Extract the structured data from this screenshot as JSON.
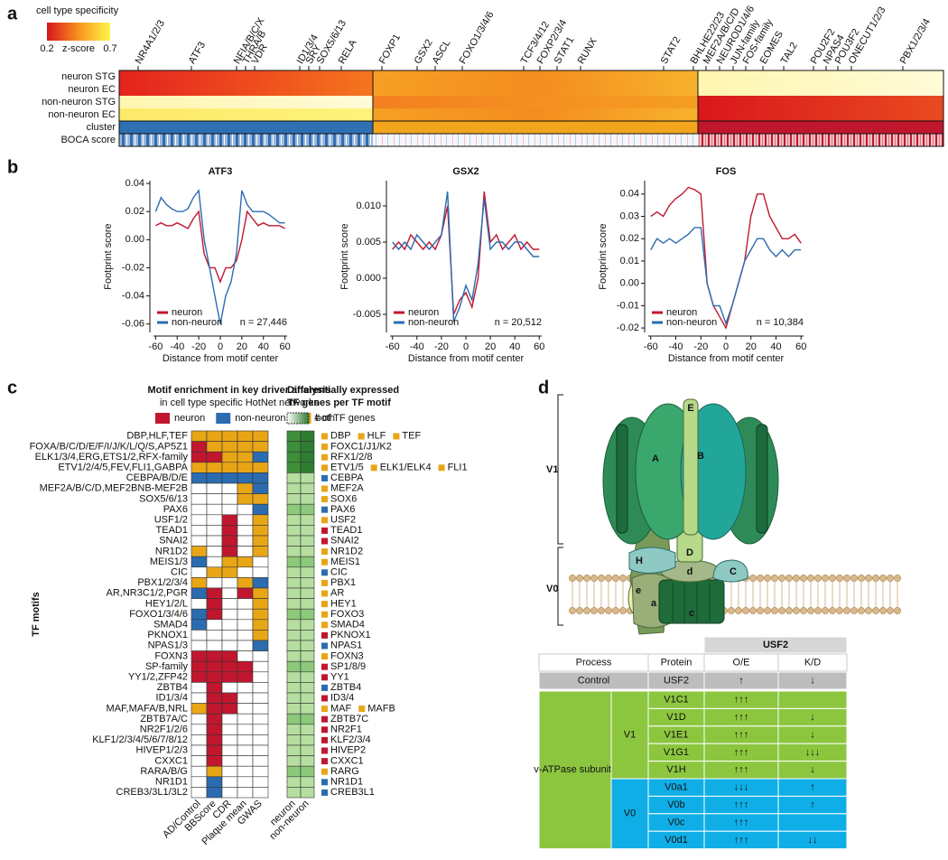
{
  "panel_labels": [
    "a",
    "b",
    "c",
    "d"
  ],
  "panel_a": {
    "legend_title": "cell type specificity",
    "legend_ticks": [
      0.2,
      0.7
    ],
    "legend_label": "z-score",
    "rows": [
      "neuron STG",
      "neuron EC",
      "non-neuron STG",
      "non-neuron EC",
      "cluster",
      "BOCA score"
    ],
    "tfs": [
      "NR4A1/2/3",
      "ATF3",
      "NFIA/B/C/X",
      "THRA/B",
      "VDR",
      "ID1/3/4",
      "SRY",
      "SOX5/6/13",
      "RELA",
      "FOXP1",
      "GSX2",
      "ASCL",
      "FOXO1/3/4/6",
      "TCF3/4/12",
      "FOXP2/3/4",
      "STAT1",
      "RUNX",
      "STAT2",
      "BHLHE22/23",
      "MEF2A/B/C/D",
      "NEUROD1/4/6",
      "JUN-family",
      "FOS-family",
      "EOMES",
      "TAL2",
      "POU2F2",
      "NPAS4",
      "POU3F2",
      "ONECUT1/2/3",
      "PBX1/2/3/4"
    ]
  },
  "chart_data": [
    {
      "type": "line",
      "title": "ATF3",
      "y_label": "Footprint score",
      "x_label": "Distance from motif center",
      "annotation": "n = 27,446",
      "x": [
        -60,
        -55,
        -50,
        -45,
        -40,
        -35,
        -30,
        -25,
        -20,
        -15,
        -10,
        -5,
        0,
        5,
        10,
        15,
        20,
        25,
        30,
        35,
        40,
        45,
        50,
        55,
        60
      ],
      "xlim": [
        -62,
        62
      ],
      "xticks": [
        -60,
        -40,
        -20,
        0,
        20,
        40,
        60
      ],
      "ylim": [
        -0.066,
        0.042
      ],
      "yticks": [
        -0.06,
        -0.04,
        -0.02,
        {
          "value": 0,
          "label": "0.00"
        },
        0.02,
        0.04
      ],
      "series": [
        {
          "name": "neuron",
          "color": "#c0172f",
          "values": [
            0.01,
            0.012,
            0.01,
            0.01,
            0.012,
            0.01,
            0.008,
            0.015,
            0.02,
            -0.01,
            -0.02,
            -0.02,
            -0.03,
            -0.02,
            -0.02,
            -0.015,
            0.0,
            0.02,
            0.015,
            0.01,
            0.012,
            0.01,
            0.01,
            0.01,
            0.008
          ]
        },
        {
          "name": "non-neuron",
          "color": "#2b6cb0",
          "values": [
            0.02,
            0.03,
            0.025,
            0.022,
            0.02,
            0.02,
            0.022,
            0.03,
            0.035,
            0.0,
            -0.02,
            -0.04,
            -0.06,
            -0.04,
            -0.03,
            -0.01,
            0.035,
            0.025,
            0.02,
            0.02,
            0.02,
            0.018,
            0.015,
            0.012,
            0.012
          ]
        }
      ]
    },
    {
      "type": "line",
      "title": "GSX2",
      "y_label": "Footprint score",
      "x_label": "Distance from motif center",
      "annotation": "n = 20,512",
      "x": [
        -60,
        -55,
        -50,
        -45,
        -40,
        -35,
        -30,
        -25,
        -20,
        -15,
        -10,
        -5,
        0,
        5,
        10,
        15,
        20,
        25,
        30,
        35,
        40,
        45,
        50,
        55,
        60
      ],
      "xlim": [
        -62,
        62
      ],
      "xticks": [
        -60,
        -40,
        -20,
        0,
        20,
        40,
        60
      ],
      "ylim": [
        -0.0075,
        0.0135
      ],
      "yticks": [
        -0.005,
        {
          "value": 0,
          "label": "0.000"
        },
        0.005,
        {
          "value": 0.01,
          "label": "0.010"
        }
      ],
      "series": [
        {
          "name": "neuron",
          "color": "#c0172f",
          "values": [
            0.004,
            0.005,
            0.004,
            0.006,
            0.005,
            0.004,
            0.005,
            0.004,
            0.006,
            0.01,
            -0.005,
            -0.003,
            -0.002,
            -0.004,
            0.0,
            0.012,
            0.005,
            0.006,
            0.004,
            0.005,
            0.006,
            0.004,
            0.005,
            0.004,
            0.004
          ]
        },
        {
          "name": "non-neuron",
          "color": "#2b6cb0",
          "values": [
            0.005,
            0.004,
            0.005,
            0.004,
            0.006,
            0.005,
            0.004,
            0.005,
            0.006,
            0.012,
            -0.006,
            -0.004,
            -0.001,
            -0.003,
            0.002,
            0.011,
            0.004,
            0.005,
            0.005,
            0.004,
            0.005,
            0.005,
            0.004,
            0.003,
            0.003
          ]
        }
      ]
    },
    {
      "type": "line",
      "title": "FOS",
      "y_label": "Footprint score",
      "x_label": "Distance from motif center",
      "annotation": "n = 10,384",
      "x": [
        -60,
        -55,
        -50,
        -45,
        -40,
        -35,
        -30,
        -25,
        -20,
        -15,
        -10,
        -5,
        0,
        5,
        10,
        15,
        20,
        25,
        30,
        35,
        40,
        45,
        50,
        55,
        60
      ],
      "xlim": [
        -62,
        62
      ],
      "xticks": [
        -60,
        -40,
        -20,
        0,
        20,
        40,
        60
      ],
      "ylim": [
        -0.022,
        0.046
      ],
      "yticks": [
        -0.02,
        -0.01,
        {
          "value": 0,
          "label": "0.00"
        },
        0.01,
        0.02,
        0.03,
        0.04
      ],
      "series": [
        {
          "name": "neuron",
          "color": "#c0172f",
          "values": [
            0.03,
            0.032,
            0.03,
            0.035,
            0.038,
            0.04,
            0.043,
            0.042,
            0.04,
            0.0,
            -0.01,
            -0.015,
            -0.02,
            -0.01,
            0.0,
            0.01,
            0.03,
            0.04,
            0.04,
            0.03,
            0.025,
            0.02,
            0.02,
            0.022,
            0.018
          ]
        },
        {
          "name": "non-neuron",
          "color": "#2b6cb0",
          "values": [
            0.015,
            0.02,
            0.018,
            0.02,
            0.018,
            0.02,
            0.022,
            0.025,
            0.025,
            0.0,
            -0.01,
            -0.01,
            -0.018,
            -0.01,
            0.0,
            0.01,
            0.015,
            0.02,
            0.02,
            0.015,
            0.012,
            0.015,
            0.012,
            0.015,
            0.015
          ]
        }
      ]
    }
  ],
  "panel_c": {
    "title": "Motif enrichment in key driver analysis",
    "subtitle": "in cell type specific HotNet networks",
    "legend": [
      {
        "label": "neuron",
        "color": "#c0172f"
      },
      {
        "label": "non-neuron",
        "color": "#2b6cb0"
      },
      {
        "label": "both",
        "color": "#e8a617"
      }
    ],
    "de_title": "Differentially expressed",
    "de_subtitle": "TF genes per TF motif",
    "de_legend": "# of TF genes",
    "y_label": "TF motifs",
    "columns": [
      "AD/Control",
      "BBScore",
      "CDR",
      "Plaque mean",
      "GWAS"
    ],
    "de_columns": [
      "neuron",
      "non-neuron"
    ],
    "rows": [
      {
        "motif": "DBP,HLF,TEF",
        "cells": [
          "both",
          "both",
          "both",
          "both",
          "both"
        ],
        "genes": [
          {
            "name": "DBP",
            "group": "both"
          },
          {
            "name": "HLF",
            "group": "both"
          },
          {
            "name": "TEF",
            "group": "both"
          }
        ]
      },
      {
        "motif": "FOXA/B/C/D/E/F/I/J/K/L/Q/S,AP5Z1",
        "cells": [
          "neuron",
          "both",
          "both",
          "both",
          "both"
        ],
        "genes": [
          {
            "name": "FOXC1/J1/K2",
            "group": "both"
          }
        ]
      },
      {
        "motif": "ELK1/3/4,ERG,ETS1/2,RFX-family",
        "cells": [
          "neuron",
          "neuron",
          "both",
          "both",
          "non-neuron"
        ],
        "genes": [
          {
            "name": "RFX1/2/8",
            "group": "both"
          }
        ]
      },
      {
        "motif": "ETV1/2/4/5,FEV,FLI1,GABPA",
        "cells": [
          "both",
          "both",
          "both",
          "both",
          "both"
        ],
        "genes": [
          {
            "name": "ETV1/5",
            "group": "both"
          },
          {
            "name": "ELK1/ELK4",
            "group": "both"
          },
          {
            "name": "FLI1",
            "group": "both"
          }
        ]
      },
      {
        "motif": "CEBPA/B/D/E",
        "cells": [
          "non-neuron",
          "non-neuron",
          "non-neuron",
          "non-neuron",
          "non-neuron"
        ],
        "genes": [
          {
            "name": "CEBPA",
            "group": "non-neuron"
          }
        ]
      },
      {
        "motif": "MEF2A/B/C/D,MEF2BNB-MEF2B",
        "cells": [
          null,
          null,
          null,
          "both",
          "non-neuron"
        ],
        "genes": [
          {
            "name": "MEF2A",
            "group": "both"
          }
        ]
      },
      {
        "motif": "SOX5/6/13",
        "cells": [
          null,
          null,
          null,
          "both",
          "both"
        ],
        "genes": [
          {
            "name": "SOX6",
            "group": "both"
          }
        ]
      },
      {
        "motif": "PAX6",
        "cells": [
          null,
          null,
          null,
          null,
          "non-neuron"
        ],
        "genes": [
          {
            "name": "PAX6",
            "group": "non-neuron"
          }
        ]
      },
      {
        "motif": "USF1/2",
        "cells": [
          null,
          null,
          "neuron",
          null,
          "both"
        ],
        "genes": [
          {
            "name": "USF2",
            "group": "both"
          }
        ]
      },
      {
        "motif": "TEAD1",
        "cells": [
          null,
          null,
          "neuron",
          null,
          "both"
        ],
        "genes": [
          {
            "name": "TEAD1",
            "group": "neuron"
          }
        ]
      },
      {
        "motif": "SNAI2",
        "cells": [
          null,
          null,
          "neuron",
          null,
          "both"
        ],
        "genes": [
          {
            "name": "SNAI2",
            "group": "neuron"
          }
        ]
      },
      {
        "motif": "NR1D2",
        "cells": [
          "both",
          null,
          "neuron",
          null,
          "both"
        ],
        "genes": [
          {
            "name": "NR1D2",
            "group": "both"
          }
        ]
      },
      {
        "motif": "MEIS1/3",
        "cells": [
          "non-neuron",
          null,
          "both",
          "both",
          null
        ],
        "genes": [
          {
            "name": "MEIS1",
            "group": "both"
          }
        ]
      },
      {
        "motif": "CIC",
        "cells": [
          null,
          "both",
          "both",
          null,
          null
        ],
        "genes": [
          {
            "name": "CIC",
            "group": "non-neuron"
          }
        ]
      },
      {
        "motif": "PBX1/2/3/4",
        "cells": [
          "both",
          null,
          null,
          "both",
          "non-neuron"
        ],
        "genes": [
          {
            "name": "PBX1",
            "group": "both"
          }
        ]
      },
      {
        "motif": "AR,NR3C1/2,PGR",
        "cells": [
          "non-neuron",
          "neuron",
          null,
          "neuron",
          "both"
        ],
        "genes": [
          {
            "name": "AR",
            "group": "both"
          }
        ]
      },
      {
        "motif": "HEY1/2/L",
        "cells": [
          null,
          "neuron",
          null,
          null,
          "both"
        ],
        "genes": [
          {
            "name": "HEY1",
            "group": "both"
          }
        ]
      },
      {
        "motif": "FOXO1/3/4/6",
        "cells": [
          "non-neuron",
          "neuron",
          null,
          null,
          "both"
        ],
        "genes": [
          {
            "name": "FOXO3",
            "group": "both"
          }
        ]
      },
      {
        "motif": "SMAD4",
        "cells": [
          "non-neuron",
          null,
          null,
          null,
          "both"
        ],
        "genes": [
          {
            "name": "SMAD4",
            "group": "both"
          }
        ]
      },
      {
        "motif": "PKNOX1",
        "cells": [
          null,
          null,
          null,
          null,
          "both"
        ],
        "genes": [
          {
            "name": "PKNOX1",
            "group": "neuron"
          }
        ]
      },
      {
        "motif": "NPAS1/3",
        "cells": [
          null,
          null,
          null,
          null,
          "non-neuron"
        ],
        "genes": [
          {
            "name": "NPAS1",
            "group": "non-neuron"
          }
        ]
      },
      {
        "motif": "FOXN3",
        "cells": [
          "neuron",
          "neuron",
          "neuron",
          null,
          null
        ],
        "genes": [
          {
            "name": "FOXN3",
            "group": "both"
          }
        ]
      },
      {
        "motif": "SP-family",
        "cells": [
          "neuron",
          "neuron",
          "neuron",
          "neuron",
          null
        ],
        "genes": [
          {
            "name": "SP1/8/9",
            "group": "neuron"
          }
        ]
      },
      {
        "motif": "YY1/2,ZFP42",
        "cells": [
          "neuron",
          "neuron",
          "neuron",
          "neuron",
          null
        ],
        "genes": [
          {
            "name": "YY1",
            "group": "neuron"
          }
        ]
      },
      {
        "motif": "ZBTB4",
        "cells": [
          null,
          "neuron",
          null,
          null,
          null
        ],
        "genes": [
          {
            "name": "ZBTB4",
            "group": "non-neuron"
          }
        ]
      },
      {
        "motif": "ID1/3/4",
        "cells": [
          null,
          "neuron",
          "neuron",
          null,
          null
        ],
        "genes": [
          {
            "name": "ID3/4",
            "group": "neuron"
          }
        ]
      },
      {
        "motif": "MAF,MAFA/B,NRL",
        "cells": [
          "both",
          "neuron",
          "neuron",
          null,
          null
        ],
        "genes": [
          {
            "name": "MAF",
            "group": "both"
          },
          {
            "name": "MAFB",
            "group": "both"
          }
        ]
      },
      {
        "motif": "ZBTB7A/C",
        "cells": [
          null,
          "neuron",
          null,
          null,
          null
        ],
        "genes": [
          {
            "name": "ZBTB7C",
            "group": "neuron"
          }
        ]
      },
      {
        "motif": "NR2F1/2/6",
        "cells": [
          null,
          "neuron",
          null,
          null,
          null
        ],
        "genes": [
          {
            "name": "NR2F1",
            "group": "neuron"
          }
        ]
      },
      {
        "motif": "KLF1/2/3/4/5/6/7/8/12",
        "cells": [
          null,
          "neuron",
          null,
          null,
          null
        ],
        "genes": [
          {
            "name": "KLF2/3/4",
            "group": "neuron"
          }
        ]
      },
      {
        "motif": "HIVEP1/2/3",
        "cells": [
          null,
          "neuron",
          null,
          null,
          null
        ],
        "genes": [
          {
            "name": "HIVEP2",
            "group": "neuron"
          }
        ]
      },
      {
        "motif": "CXXC1",
        "cells": [
          null,
          "neuron",
          null,
          null,
          null
        ],
        "genes": [
          {
            "name": "CXXC1",
            "group": "neuron"
          }
        ]
      },
      {
        "motif": "RARA/B/G",
        "cells": [
          null,
          "both",
          null,
          null,
          null
        ],
        "genes": [
          {
            "name": "RARG",
            "group": "both"
          }
        ]
      },
      {
        "motif": "NR1D1",
        "cells": [
          null,
          "non-neuron",
          null,
          null,
          null
        ],
        "genes": [
          {
            "name": "NR1D1",
            "group": "non-neuron"
          }
        ]
      },
      {
        "motif": "CREB3/3L1/3L2",
        "cells": [
          null,
          "non-neuron",
          null,
          null,
          null
        ],
        "genes": [
          {
            "name": "CREB3L1",
            "group": "non-neuron"
          }
        ]
      }
    ]
  },
  "panel_d": {
    "diagram": {
      "groups": [
        "V1",
        "V0"
      ],
      "subunits": [
        "A",
        "B",
        "E",
        "H",
        "C",
        "D",
        "d",
        "c",
        "e",
        "a"
      ]
    },
    "table": {
      "group_header": "USF2",
      "headers": [
        "Process",
        "Protein",
        "O/E",
        "K/D"
      ],
      "control": [
        "Control",
        "USF2",
        "↑",
        "↓"
      ],
      "process": "v-ATPase subunits",
      "sections": [
        {
          "name": "V1",
          "rows": [
            [
              "V1C1",
              "↑↑↑",
              null
            ],
            [
              "V1D",
              "↑↑↑",
              "↓"
            ],
            [
              "V1E1",
              "↑↑↑",
              "↓"
            ],
            [
              "V1G1",
              "↑↑↑",
              "↓↓↓"
            ],
            [
              "V1H",
              "↑↑↑",
              "↓"
            ]
          ]
        },
        {
          "name": "V0",
          "rows": [
            [
              "V0a1",
              "↓↓↓",
              "↑"
            ],
            [
              "V0b",
              "↑↑↑",
              "↑"
            ],
            [
              "V0c",
              "↑↑↑",
              null
            ],
            [
              "V0d1",
              "↑↑↑",
              "↓↓"
            ]
          ]
        }
      ]
    }
  }
}
